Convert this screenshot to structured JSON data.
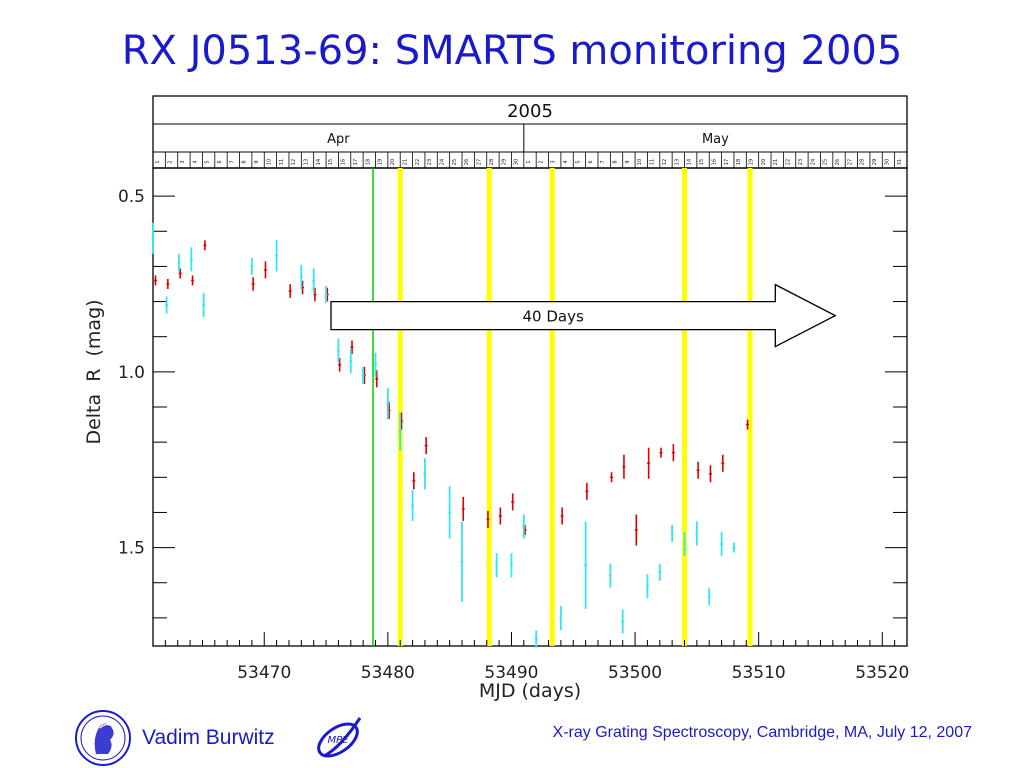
{
  "slide": {
    "title": "RX J0513-69: SMARTS monitoring 2005",
    "author": "Vadim Burwitz",
    "conference": "X-ray Grating Spectroscopy, Cambridge, MA, July 12, 2007",
    "logo_left_icon": "max-planck-minerva-logo",
    "logo_right_icon": "mpe-logo",
    "logo_right_text": "MPE"
  },
  "colors": {
    "title": "#1a1acc",
    "r_band": "#dd0000",
    "cyan_band": "#33e6ef",
    "yellow_line": "#ffff00",
    "green_line": "#00cc00"
  },
  "chart_data": {
    "type": "scatter",
    "xlabel": "MJD (days)",
    "ylabel": "Delta  R  (mag)",
    "xlim": [
      53461,
      53522
    ],
    "ylim": [
      1.78,
      0.42
    ],
    "x_ticks": [
      53470,
      53480,
      53490,
      53500,
      53510,
      53520
    ],
    "y_ticks": [
      0.5,
      1.0,
      1.5
    ],
    "top_axis": {
      "year": "2005",
      "months": [
        {
          "label": "Apr",
          "start_day": 1
        },
        {
          "label": "May",
          "start_day": 1
        }
      ],
      "apr_days": [
        "1",
        "2",
        "3",
        "4",
        "5",
        "6",
        "7",
        "8",
        "9",
        "10",
        "11",
        "12",
        "13",
        "14",
        "15",
        "16",
        "17",
        "18",
        "19",
        "20",
        "21",
        "22",
        "23",
        "24",
        "25",
        "26",
        "27",
        "28",
        "29",
        "30"
      ],
      "may_days": [
        "1",
        "2",
        "3",
        "4",
        "5",
        "6",
        "7",
        "8",
        "9",
        "10",
        "11",
        "12",
        "13",
        "14",
        "15",
        "16",
        "17",
        "18",
        "19",
        "20",
        "21",
        "22",
        "23",
        "24",
        "25",
        "26",
        "27",
        "28",
        "29",
        "30",
        "31"
      ],
      "apr1_mjd": 53461,
      "visible_days_start_mjd": 53461.3
    },
    "vertical_lines": [
      {
        "x": 53478.8,
        "color": "green"
      },
      {
        "x": 53481.0,
        "color": "yellow"
      },
      {
        "x": 53488.2,
        "color": "yellow"
      },
      {
        "x": 53493.3,
        "color": "yellow"
      },
      {
        "x": 53504.0,
        "color": "yellow"
      },
      {
        "x": 53509.3,
        "color": "yellow"
      }
    ],
    "annotation_arrow": {
      "label": "40 Days",
      "x_start": 53475.4,
      "x_end": 53516.2,
      "y": 0.84
    },
    "series": [
      {
        "color": "red",
        "points": [
          {
            "x": 53461.2,
            "y": 0.74,
            "err": 0.01
          },
          {
            "x": 53462.2,
            "y": 0.75,
            "err": 0.01
          },
          {
            "x": 53463.2,
            "y": 0.72,
            "err": 0.01
          },
          {
            "x": 53464.2,
            "y": 0.74,
            "err": 0.01
          },
          {
            "x": 53465.2,
            "y": 0.64,
            "err": 0.01
          },
          {
            "x": 53469.1,
            "y": 0.75,
            "err": 0.015
          },
          {
            "x": 53470.1,
            "y": 0.71,
            "err": 0.02
          },
          {
            "x": 53472.1,
            "y": 0.77,
            "err": 0.015
          },
          {
            "x": 53473.1,
            "y": 0.76,
            "err": 0.015
          },
          {
            "x": 53474.1,
            "y": 0.78,
            "err": 0.015
          },
          {
            "x": 53475.1,
            "y": 0.78,
            "err": 0.015
          },
          {
            "x": 53476.1,
            "y": 0.98,
            "err": 0.015
          },
          {
            "x": 53477.1,
            "y": 0.93,
            "err": 0.015
          },
          {
            "x": 53478.1,
            "y": 1.01,
            "err": 0.02
          },
          {
            "x": 53479.1,
            "y": 1.02,
            "err": 0.02
          },
          {
            "x": 53480.1,
            "y": 1.11,
            "err": 0.02
          },
          {
            "x": 53481.1,
            "y": 1.14,
            "err": 0.02
          },
          {
            "x": 53482.1,
            "y": 1.31,
            "err": 0.02
          },
          {
            "x": 53483.1,
            "y": 1.21,
            "err": 0.02
          },
          {
            "x": 53486.1,
            "y": 1.39,
            "err": 0.03
          },
          {
            "x": 53488.1,
            "y": 1.42,
            "err": 0.02
          },
          {
            "x": 53489.1,
            "y": 1.41,
            "err": 0.02
          },
          {
            "x": 53490.1,
            "y": 1.37,
            "err": 0.02
          },
          {
            "x": 53491.1,
            "y": 1.45,
            "err": 0.01
          },
          {
            "x": 53494.1,
            "y": 1.41,
            "err": 0.02
          },
          {
            "x": 53496.1,
            "y": 1.34,
            "err": 0.02
          },
          {
            "x": 53498.1,
            "y": 1.3,
            "err": 0.01
          },
          {
            "x": 53499.1,
            "y": 1.27,
            "err": 0.03
          },
          {
            "x": 53500.1,
            "y": 1.45,
            "err": 0.04
          },
          {
            "x": 53501.1,
            "y": 1.26,
            "err": 0.04
          },
          {
            "x": 53502.1,
            "y": 1.23,
            "err": 0.01
          },
          {
            "x": 53503.1,
            "y": 1.23,
            "err": 0.02
          },
          {
            "x": 53505.1,
            "y": 1.28,
            "err": 0.02
          },
          {
            "x": 53506.1,
            "y": 1.29,
            "err": 0.02
          },
          {
            "x": 53507.1,
            "y": 1.26,
            "err": 0.02
          },
          {
            "x": 53509.1,
            "y": 1.15,
            "err": 0.01
          }
        ]
      },
      {
        "color": "cyan",
        "points": [
          {
            "x": 53461.0,
            "y": 0.62,
            "err": 0.04
          },
          {
            "x": 53462.1,
            "y": 0.81,
            "err": 0.02
          },
          {
            "x": 53463.1,
            "y": 0.69,
            "err": 0.02
          },
          {
            "x": 53464.1,
            "y": 0.68,
            "err": 0.03
          },
          {
            "x": 53465.1,
            "y": 0.81,
            "err": 0.03
          },
          {
            "x": 53469.0,
            "y": 0.7,
            "err": 0.02
          },
          {
            "x": 53471.0,
            "y": 0.67,
            "err": 0.04
          },
          {
            "x": 53473.0,
            "y": 0.73,
            "err": 0.03
          },
          {
            "x": 53474.0,
            "y": 0.74,
            "err": 0.03
          },
          {
            "x": 53475.0,
            "y": 0.78,
            "err": 0.02
          },
          {
            "x": 53476.0,
            "y": 0.94,
            "err": 0.03
          },
          {
            "x": 53477.0,
            "y": 0.97,
            "err": 0.03
          },
          {
            "x": 53478.0,
            "y": 1.01,
            "err": 0.02
          },
          {
            "x": 53479.0,
            "y": 0.98,
            "err": 0.03
          },
          {
            "x": 53480.0,
            "y": 1.09,
            "err": 0.04
          },
          {
            "x": 53481.0,
            "y": 1.17,
            "err": 0.05
          },
          {
            "x": 53482.0,
            "y": 1.38,
            "err": 0.04
          },
          {
            "x": 53483.0,
            "y": 1.29,
            "err": 0.04
          },
          {
            "x": 53485.0,
            "y": 1.4,
            "err": 0.07
          },
          {
            "x": 53486.0,
            "y": 1.54,
            "err": 0.11
          },
          {
            "x": 53488.8,
            "y": 1.55,
            "err": 0.03
          },
          {
            "x": 53490.0,
            "y": 1.55,
            "err": 0.03
          },
          {
            "x": 53491.0,
            "y": 1.44,
            "err": 0.03
          },
          {
            "x": 53492.0,
            "y": 1.76,
            "err": 0.02
          },
          {
            "x": 53494.0,
            "y": 1.7,
            "err": 0.03
          },
          {
            "x": 53496.0,
            "y": 1.55,
            "err": 0.12
          },
          {
            "x": 53498.0,
            "y": 1.58,
            "err": 0.03
          },
          {
            "x": 53499.0,
            "y": 1.71,
            "err": 0.03
          },
          {
            "x": 53501.0,
            "y": 1.61,
            "err": 0.03
          },
          {
            "x": 53502.0,
            "y": 1.57,
            "err": 0.02
          },
          {
            "x": 53503.0,
            "y": 1.46,
            "err": 0.02
          },
          {
            "x": 53504.0,
            "y": 1.49,
            "err": 0.03
          },
          {
            "x": 53505.0,
            "y": 1.46,
            "err": 0.03
          },
          {
            "x": 53506.0,
            "y": 1.64,
            "err": 0.02
          },
          {
            "x": 53507.0,
            "y": 1.49,
            "err": 0.03
          },
          {
            "x": 53508.0,
            "y": 1.5,
            "err": 0.01
          }
        ]
      }
    ]
  }
}
